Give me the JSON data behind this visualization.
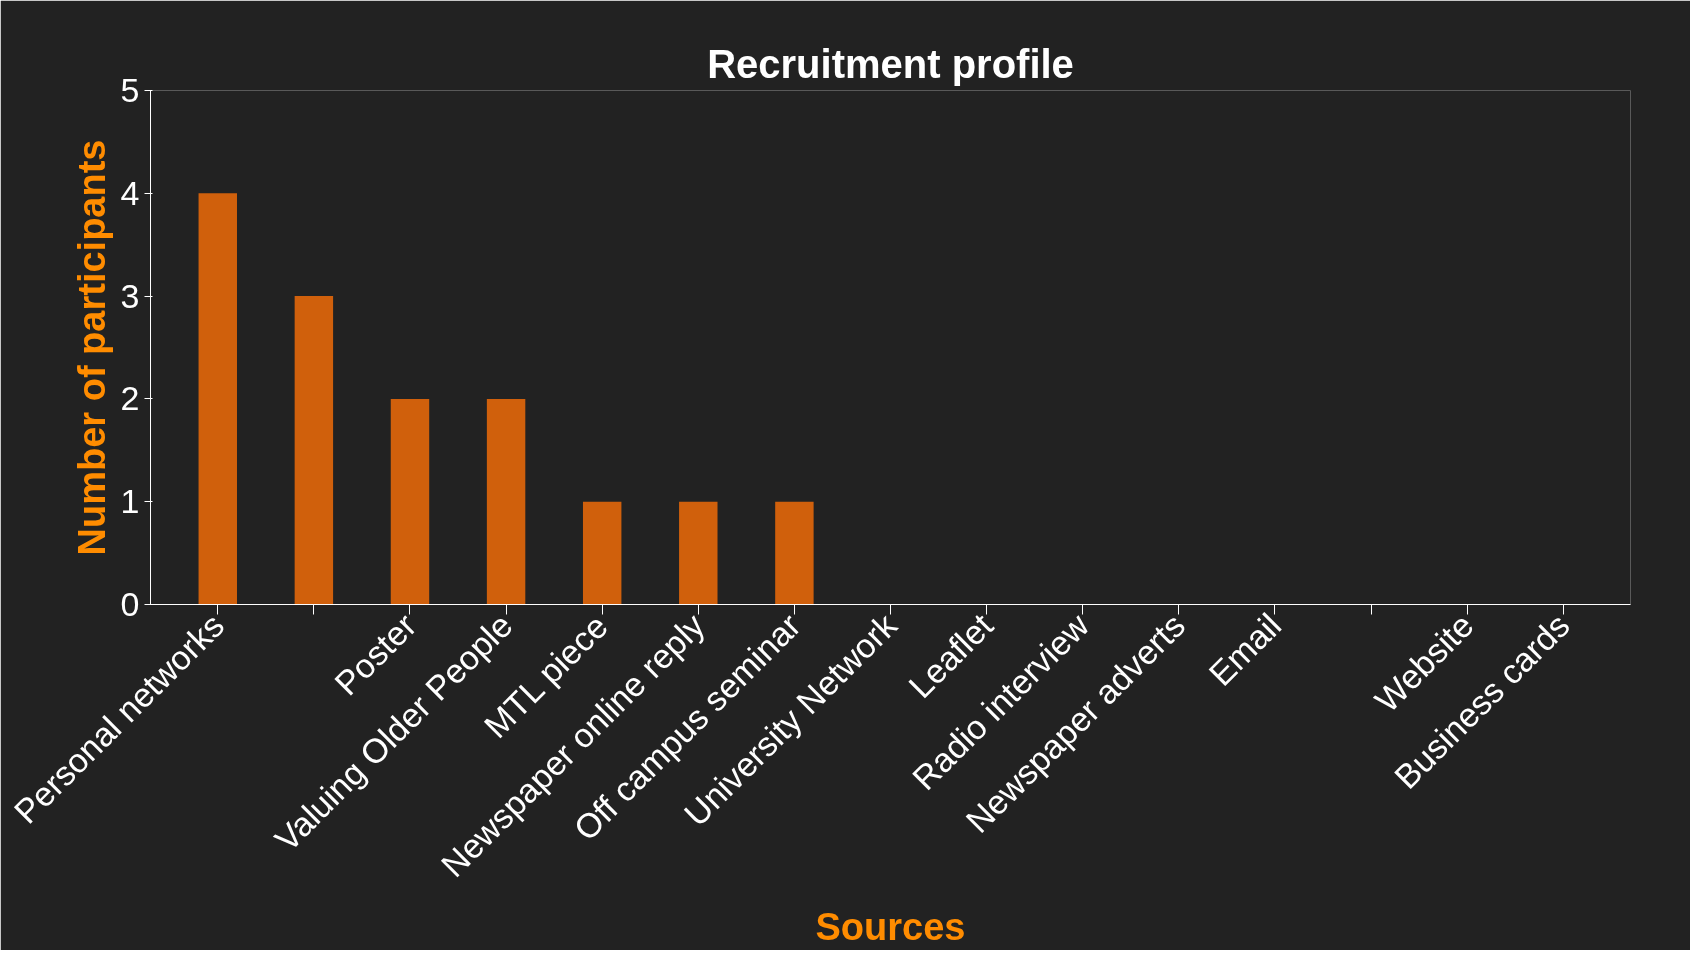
{
  "chart_data": {
    "type": "bar",
    "title": "Recruitment profile",
    "xlabel": "Sources",
    "ylabel": "Number of participants",
    "categories": [
      "Personal networks",
      null,
      "Poster",
      "Valuing Older People",
      "MTL piece",
      "Newspaper online reply",
      "Off campus seminar",
      "University Network",
      "Leaflet",
      "Radio interview",
      "Newspaper adverts",
      "Email",
      null,
      "Website",
      "Business cards"
    ],
    "values": [
      4,
      3,
      2,
      2,
      1,
      1,
      1,
      0,
      0,
      0,
      0,
      0,
      0,
      0,
      0
    ],
    "color": "#d0600c",
    "ylim": [
      0,
      5
    ],
    "yticks": [
      0,
      1,
      2,
      3,
      4,
      5
    ],
    "grid": false
  }
}
